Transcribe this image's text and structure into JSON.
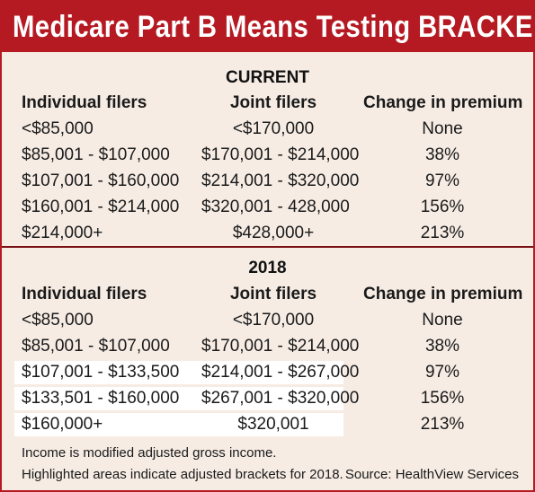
{
  "title": "Medicare Part B Means Testing BRACKETS",
  "headers": {
    "individual": "Individual filers",
    "joint": "Joint filers",
    "change": "Change in premium"
  },
  "current": {
    "label": "CURRENT",
    "rows": [
      {
        "individual": "<$85,000",
        "joint": "<$170,000",
        "change": "None"
      },
      {
        "individual": "$85,001 - $107,000",
        "joint": "$170,001 - $214,000",
        "change": "38%"
      },
      {
        "individual": "$107,001 - $160,000",
        "joint": "$214,001 - $320,000",
        "change": "97%"
      },
      {
        "individual": "$160,001 - $214,000",
        "joint": "$320,001 - 428,000",
        "change": "156%"
      },
      {
        "individual": "$214,000+",
        "joint": "$428,000+",
        "change": "213%"
      }
    ]
  },
  "y2018": {
    "label": "2018",
    "rows": [
      {
        "individual": "<$85,000",
        "joint": "<$170,000",
        "change": "None",
        "highlighted": false
      },
      {
        "individual": "$85,001 - $107,000",
        "joint": "$170,001 - $214,000",
        "change": "38%",
        "highlighted": false
      },
      {
        "individual": "$107,001 - $133,500",
        "joint": "$214,001 - $267,000",
        "change": "97%",
        "highlighted": true
      },
      {
        "individual": "$133,501 - $160,000",
        "joint": "$267,001 - $320,000",
        "change": "156%",
        "highlighted": true
      },
      {
        "individual": "$160,000+",
        "joint": "$320,001",
        "change": "213%",
        "highlighted": true
      }
    ]
  },
  "notes": {
    "note1": "Income is modified adjusted gross income.",
    "note2": "Highlighted areas indicate adjusted brackets for 2018.",
    "source": "Source: HealthView Services"
  },
  "colors": {
    "banner": "#b51a22",
    "background": "#f6ece4",
    "highlight": "#ffffff"
  }
}
